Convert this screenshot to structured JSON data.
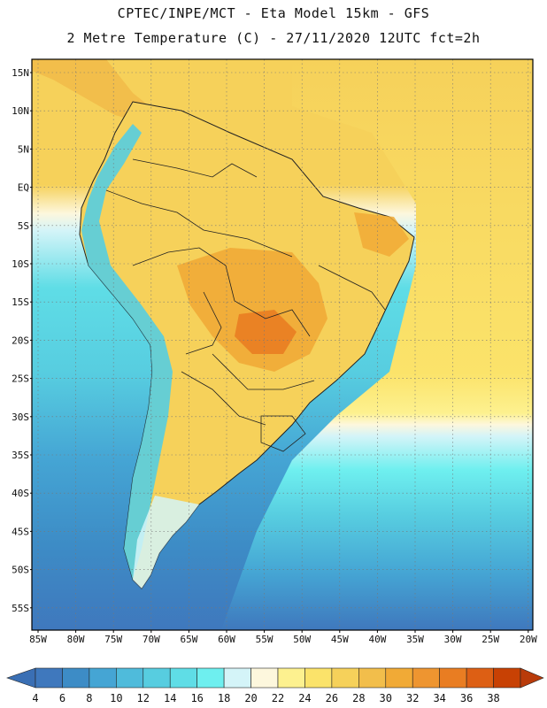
{
  "header": {
    "line1": "CPTEC/INPE/MCT -  Eta Model 15km - GFS",
    "line2": "2 Metre Temperature (C) - 27/11/2020 12UTC fct=2h"
  },
  "map": {
    "lat_labels": [
      "15N",
      "10N",
      "5N",
      "EQ",
      "5S",
      "10S",
      "15S",
      "20S",
      "25S",
      "30S",
      "35S",
      "40S",
      "45S",
      "50S",
      "55S"
    ],
    "lon_labels": [
      "85W",
      "80W",
      "75W",
      "70W",
      "65W",
      "60W",
      "55W",
      "50W",
      "45W",
      "40W",
      "35W",
      "30W",
      "25W",
      "20W"
    ]
  },
  "legend": {
    "labels": [
      "4",
      "6",
      "8",
      "10",
      "12",
      "14",
      "16",
      "18",
      "20",
      "22",
      "24",
      "26",
      "28",
      "30",
      "32",
      "34",
      "36",
      "38"
    ],
    "colors": [
      "#3f78bd",
      "#3d8cc6",
      "#45a5d4",
      "#4fbbdb",
      "#57cde0",
      "#5fdde6",
      "#6eefef",
      "#d4f4f8",
      "#fdf7dd",
      "#fdf18f",
      "#fbe36a",
      "#f6d15a",
      "#f2be4b",
      "#f1aa36",
      "#ee9530",
      "#e97d22",
      "#dd5f14",
      "#c84104"
    ],
    "start_color": "#3a6fb4",
    "end_color": "#b93b0a"
  }
}
